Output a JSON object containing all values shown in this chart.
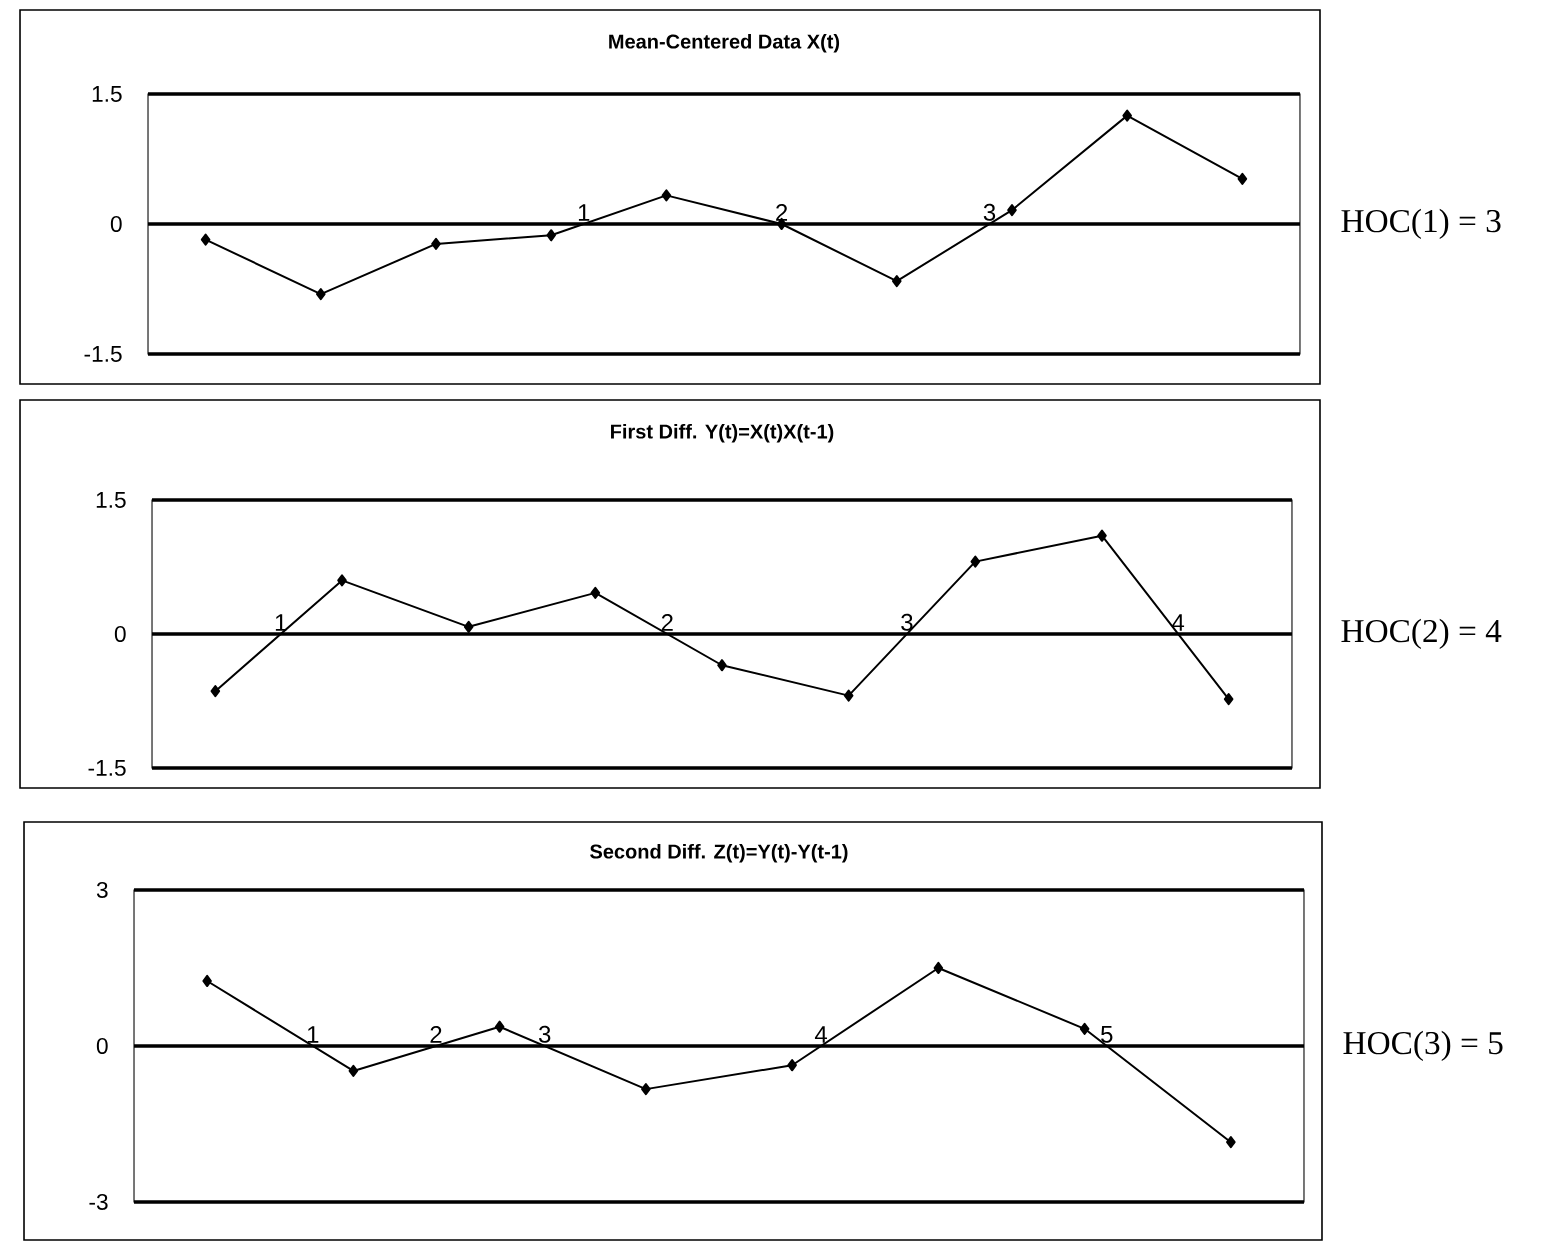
{
  "chart_data": [
    {
      "type": "line",
      "title": "Mean-Centered Data X(t)",
      "categories": [
        null,
        null,
        null,
        null,
        null,
        null,
        null,
        null,
        null,
        null
      ],
      "values": [
        -0.18,
        -0.81,
        -0.23,
        -0.13,
        0.33,
        0,
        -0.66,
        0.16,
        1.25,
        0.52
      ],
      "color": "#000000",
      "marker": "diamond",
      "ylim": [
        -1.5,
        1.5
      ],
      "yticks": [
        -1.5,
        0,
        1.5
      ],
      "grid": "y",
      "tick_labels": "y",
      "annotations": [
        "1",
        "2",
        "3",
        "HOC(1) = 3"
      ]
    },
    {
      "type": "line",
      "title": "First Diff. Y(t)=X(t)X(t-1)",
      "categories": [
        null,
        null,
        null,
        null,
        null,
        null,
        null,
        null,
        null
      ],
      "values": [
        -0.64,
        0.6,
        0.08,
        0.46,
        -0.35,
        -0.69,
        0.81,
        1.1,
        -0.73
      ],
      "color": "#000000",
      "marker": "diamond",
      "ylim": [
        -1.5,
        1.5
      ],
      "yticks": [
        -1.5,
        0,
        1.5
      ],
      "grid": "y",
      "tick_labels": "y",
      "annotations": [
        "1",
        "2",
        "3",
        "4",
        "HOC(2) = 4"
      ]
    },
    {
      "type": "line",
      "title": "Second Diff. Z(t)=Y(t)-Y(t-1)",
      "categories": [
        null,
        null,
        null,
        null,
        null,
        null,
        null,
        null
      ],
      "values": [
        1.25,
        -0.48,
        0.37,
        -0.83,
        -0.37,
        1.5,
        0.33,
        -1.85
      ],
      "color": "#000000",
      "marker": "diamond",
      "ylim": [
        -3,
        3
      ],
      "yticks": [
        -3,
        0,
        3
      ],
      "grid": "y",
      "tick_labels": "y",
      "annotations": [
        "1",
        "2",
        "3",
        "4",
        "5",
        "HOC(3) = 5"
      ]
    }
  ]
}
